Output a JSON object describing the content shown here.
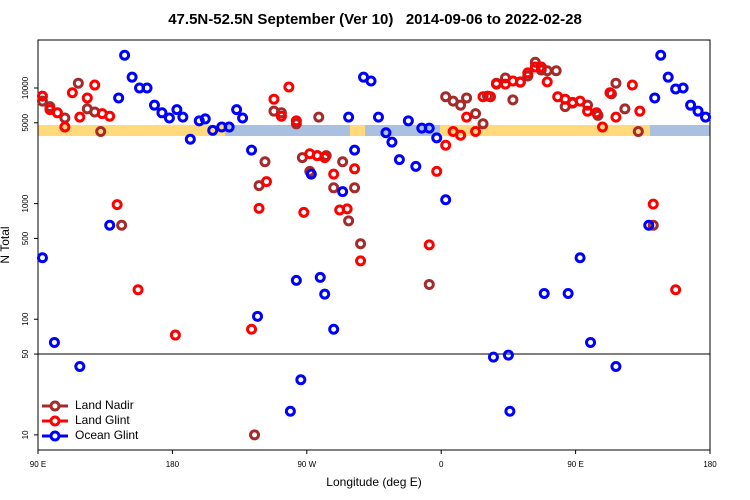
{
  "chart_data": {
    "type": "scatter",
    "title": "47.5N-52.5N September (Ver 10)   2014-09-06 to 2022-02-28",
    "x_label": "Longitude (deg E)",
    "y_label": "N Total",
    "xlim": [
      90,
      540
    ],
    "xticks": [
      {
        "value": 90,
        "label": "90 E"
      },
      {
        "value": 180,
        "label": "180"
      },
      {
        "value": 270,
        "label": "90 W"
      },
      {
        "value": 360,
        "label": "0"
      },
      {
        "value": 450,
        "label": "90 E"
      },
      {
        "value": 540,
        "label": "180"
      }
    ],
    "ylim": [
      7.4,
      26000
    ],
    "yscale": "log",
    "yticks": [
      10,
      50,
      100,
      500,
      1000,
      5000,
      10000
    ],
    "divider_y": 50,
    "legend": "lower left",
    "series": [
      {
        "name": "Land Nadir",
        "color": "#a52a2a",
        "x": [
          93,
          98,
          108,
          117,
          123,
          128,
          132,
          146,
          235,
          238,
          242,
          248,
          253,
          263,
          267,
          272,
          277,
          283,
          288,
          294,
          298,
          302,
          306,
          278,
          352,
          363,
          368,
          373,
          377,
          383,
          388,
          391,
          397,
          403,
          408,
          413,
          418,
          423,
          427,
          431,
          437,
          443,
          448,
          458,
          465,
          474,
          477,
          483,
          492,
          502
        ],
        "values": [
          7700,
          6900,
          5500,
          11000,
          6600,
          6200,
          4200,
          650,
          10,
          1430,
          2300,
          6300,
          6100,
          4900,
          2500,
          1900,
          2600,
          2600,
          1370,
          2300,
          710,
          1370,
          450,
          5600,
          200,
          8400,
          7700,
          7100,
          8200,
          6000,
          4900,
          8500,
          11000,
          12200,
          7900,
          11300,
          12700,
          16700,
          14300,
          14100,
          14100,
          6900,
          7400,
          7100,
          5800,
          8900,
          11000,
          6600,
          4200,
          650
        ]
      },
      {
        "name": "Land Glint",
        "color": "#ff0000",
        "x": [
          93,
          98,
          103,
          108,
          113,
          118,
          123,
          128,
          133,
          138,
          143,
          157,
          182,
          233,
          238,
          243,
          248,
          253,
          258,
          263,
          268,
          272,
          277,
          282,
          288,
          292,
          297,
          302,
          306,
          352,
          357,
          363,
          368,
          373,
          377,
          383,
          388,
          393,
          397,
          403,
          408,
          413,
          418,
          423,
          427,
          431,
          438,
          443,
          448,
          453,
          458,
          464,
          468,
          473,
          477,
          488,
          493,
          502,
          517
        ],
        "values": [
          8500,
          6500,
          6100,
          4600,
          9100,
          5600,
          8200,
          10600,
          6000,
          5700,
          980,
          180,
          73,
          82,
          910,
          1550,
          8000,
          5700,
          10200,
          5200,
          840,
          2700,
          2600,
          2500,
          1800,
          880,
          900,
          2000,
          320,
          440,
          1900,
          3200,
          4200,
          3900,
          5600,
          4200,
          8400,
          8400,
          10800,
          10800,
          11500,
          11200,
          13500,
          15200,
          15200,
          11300,
          8400,
          8000,
          7500,
          7700,
          6300,
          6100,
          4600,
          9100,
          5600,
          10600,
          6300,
          990,
          180
        ]
      },
      {
        "name": "Ocean Glint",
        "color": "#0000ff",
        "x": [
          93,
          101,
          118,
          138,
          144,
          148,
          153,
          158,
          163,
          168,
          173,
          178,
          183,
          187,
          192,
          198,
          202,
          207,
          213,
          218,
          223,
          227,
          233,
          237,
          259,
          263,
          266,
          273,
          279,
          282,
          288,
          294,
          298,
          302,
          308,
          313,
          318,
          323,
          327,
          332,
          338,
          343,
          347,
          352,
          357,
          363,
          395,
          405,
          406,
          429,
          445,
          453,
          460,
          477,
          499,
          503,
          507,
          512,
          517,
          522,
          527,
          532,
          537
        ],
        "values": [
          340,
          63,
          39,
          650,
          8200,
          19200,
          12400,
          10000,
          10000,
          7100,
          6100,
          5500,
          6500,
          5600,
          3600,
          5200,
          5400,
          4300,
          4600,
          4600,
          6500,
          5500,
          2900,
          106,
          16,
          217,
          30,
          1800,
          230,
          165,
          82,
          1270,
          5600,
          2900,
          12400,
          11500,
          5600,
          4100,
          3400,
          2400,
          5200,
          2100,
          4500,
          4500,
          3700,
          1080,
          47,
          49,
          16,
          167,
          167,
          340,
          63,
          39,
          650,
          8200,
          19200,
          12400,
          9800,
          10000,
          7100,
          6300,
          5600
        ]
      }
    ]
  }
}
